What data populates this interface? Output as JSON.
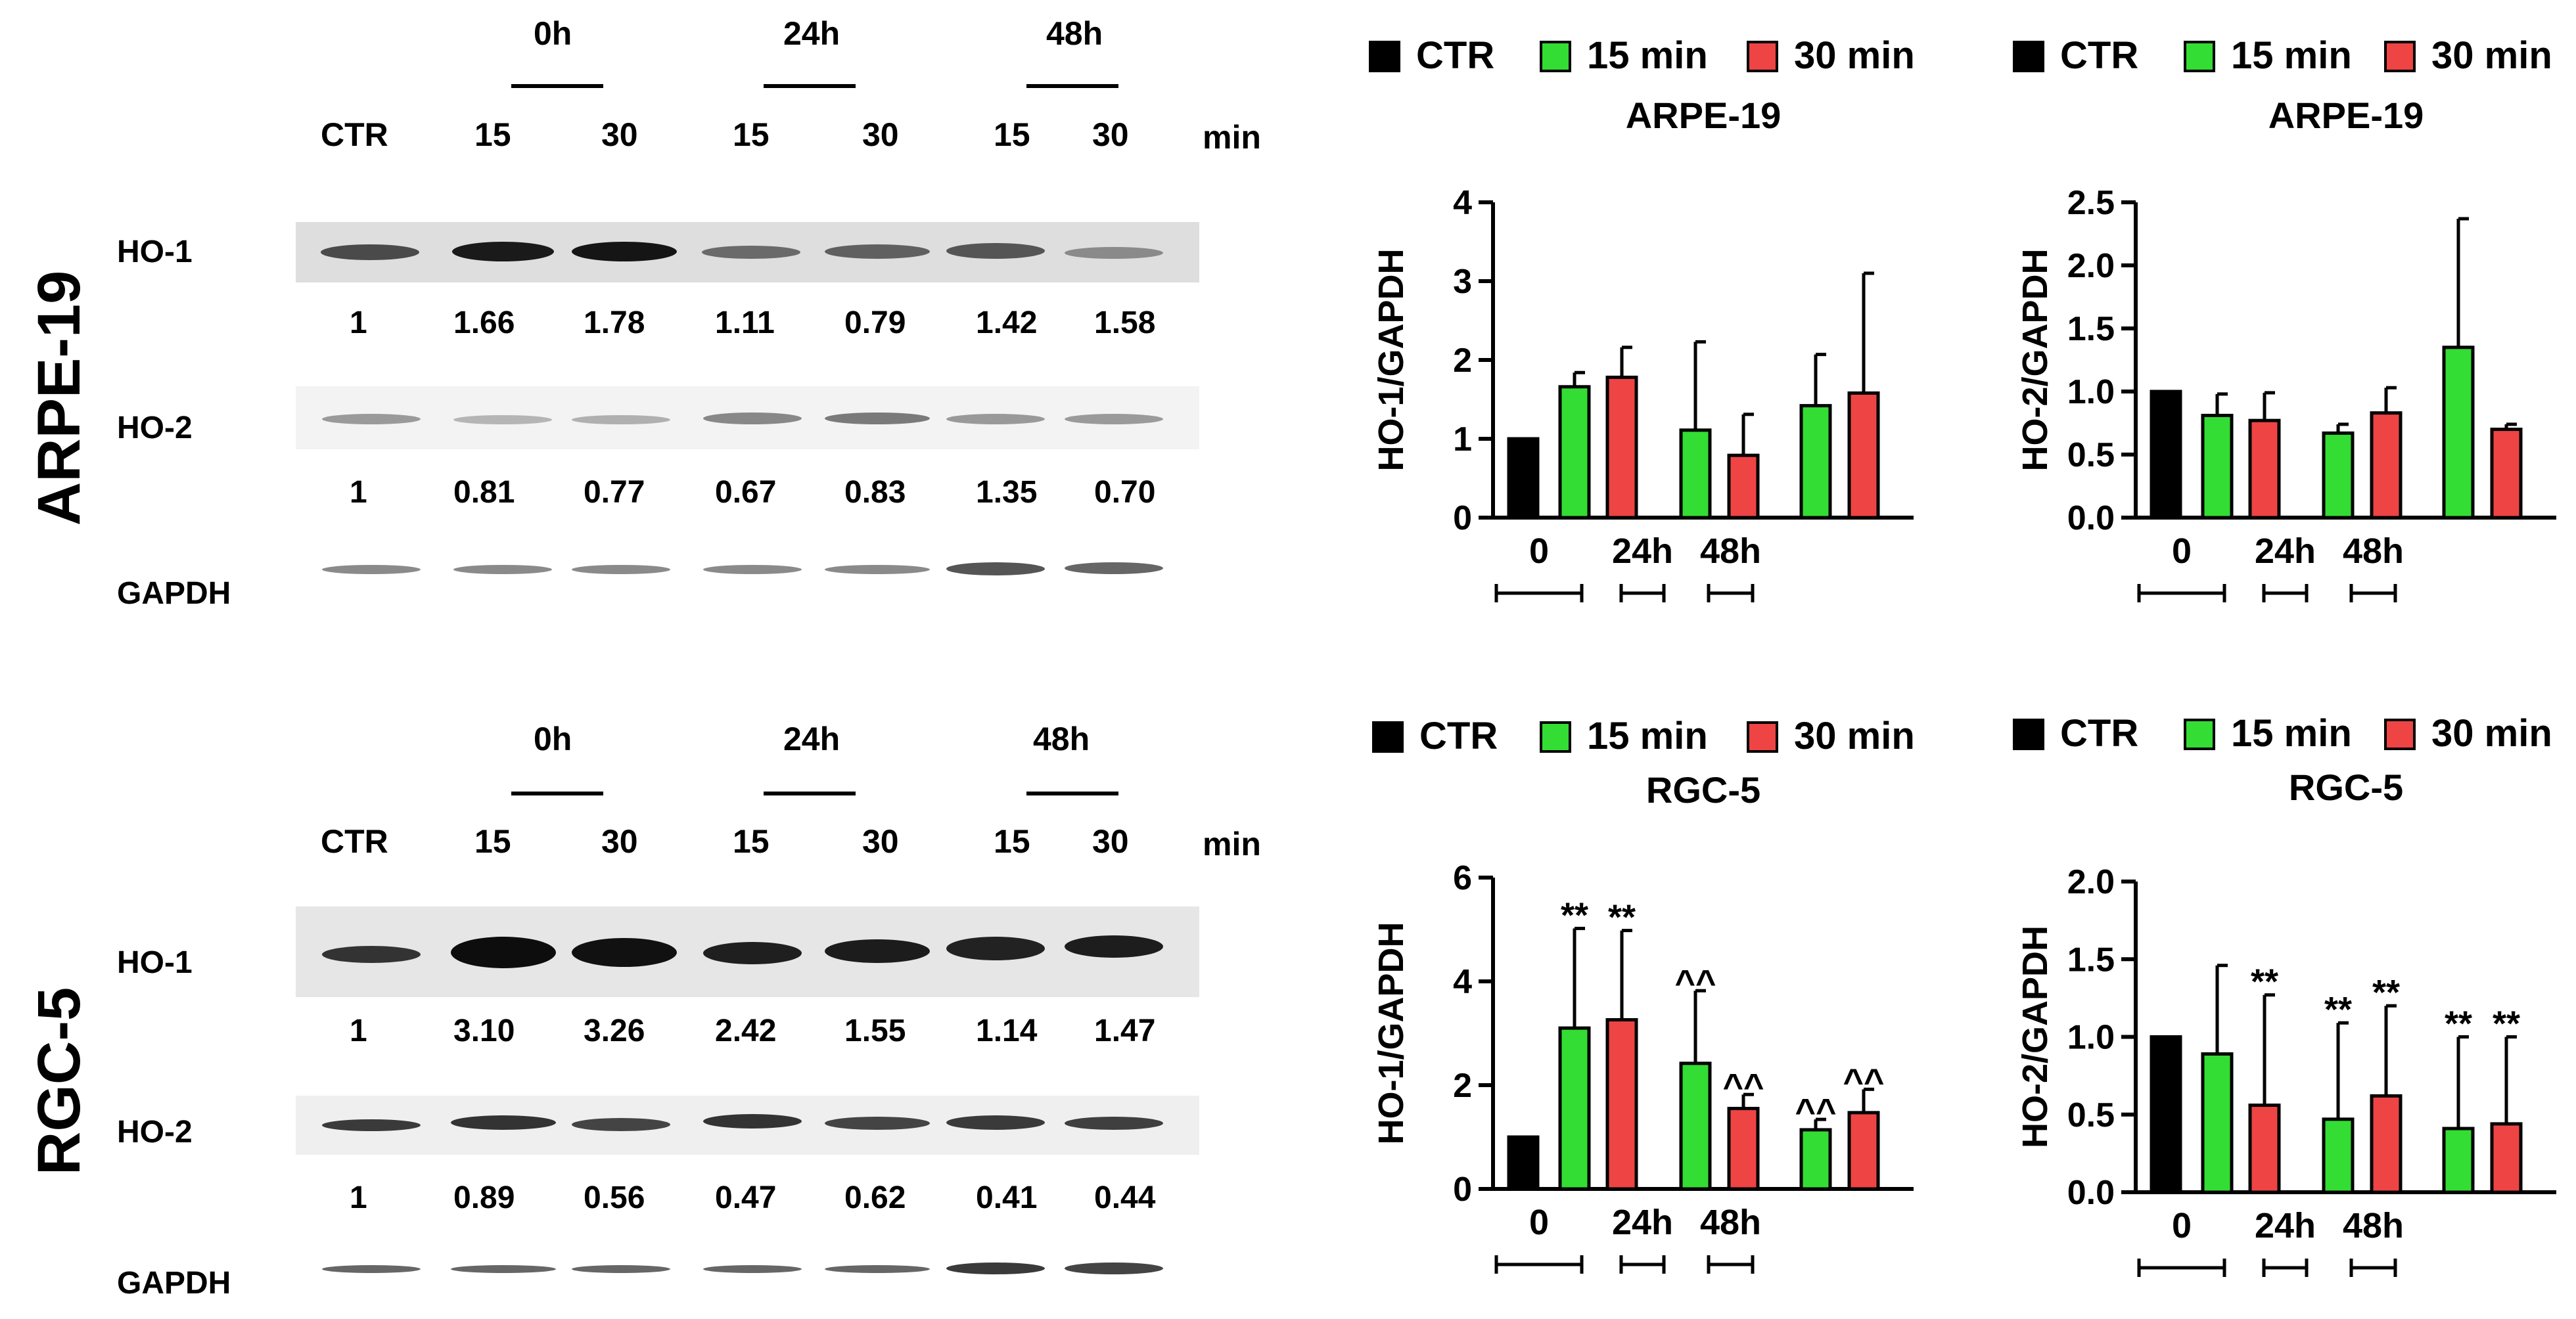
{
  "panels": [
    {
      "cell_line": "ARPE-19",
      "timepoints": [
        "0h",
        "24h",
        "48h"
      ],
      "lane_labels": [
        "CTR",
        "15",
        "30",
        "15",
        "30",
        "15",
        "30"
      ],
      "min_label": "min",
      "rows": [
        {
          "name": "HO-1",
          "values": [
            "1",
            "1.66",
            "1.78",
            "1.11",
            "0.79",
            "1.42",
            "1.58"
          ]
        },
        {
          "name": "HO-2",
          "values": [
            "1",
            "0.81",
            "0.77",
            "0.67",
            "0.83",
            "1.35",
            "0.70"
          ]
        },
        {
          "name": "GAPDH",
          "values": []
        }
      ]
    },
    {
      "cell_line": "RGC-5",
      "timepoints": [
        "0h",
        "24h",
        "48h"
      ],
      "lane_labels": [
        "CTR",
        "15",
        "30",
        "15",
        "30",
        "15",
        "30"
      ],
      "min_label": "min",
      "rows": [
        {
          "name": "HO-1",
          "values": [
            "1",
            "3.10",
            "3.26",
            "2.42",
            "1.55",
            "1.14",
            "1.47"
          ]
        },
        {
          "name": "HO-2",
          "values": [
            "1",
            "0.89",
            "0.56",
            "0.47",
            "0.62",
            "0.41",
            "0.44"
          ]
        },
        {
          "name": "GAPDH",
          "values": []
        }
      ]
    }
  ],
  "colors": {
    "ctr": "#000000",
    "m15": "#33dd33",
    "m30": "#ee4444"
  },
  "chart_data": [
    {
      "type": "bar",
      "title": "ARPE-19",
      "ylabel": "HO-1/GAPDH",
      "ylim": [
        0,
        4
      ],
      "yticks": [
        "0",
        "1",
        "2",
        "3",
        "4"
      ],
      "legend": [
        "CTR",
        "15 min",
        "30 min"
      ],
      "groups": [
        "0",
        "24h",
        "48h"
      ],
      "bars": [
        {
          "series": "CTR",
          "value": 1.0,
          "err": 0
        },
        {
          "series": "15 min",
          "value": 1.66,
          "err": 0.18
        },
        {
          "series": "30 min",
          "value": 1.78,
          "err": 0.38
        },
        {
          "series": "15 min",
          "value": 1.11,
          "err": 1.12
        },
        {
          "series": "30 min",
          "value": 0.79,
          "err": 0.52
        },
        {
          "series": "15 min",
          "value": 1.42,
          "err": 0.65
        },
        {
          "series": "30 min",
          "value": 1.58,
          "err": 1.52
        }
      ],
      "annotations": [
        "",
        "",
        "",
        "",
        "",
        "",
        ""
      ]
    },
    {
      "type": "bar",
      "title": "ARPE-19",
      "ylabel": "HO-2/GAPDH",
      "ylim": [
        0,
        2.5
      ],
      "yticks": [
        "0.0",
        "0.5",
        "1.0",
        "1.5",
        "2.0",
        "2.5"
      ],
      "legend": [
        "CTR",
        "15 min",
        "30 min"
      ],
      "groups": [
        "0",
        "24h",
        "48h"
      ],
      "bars": [
        {
          "series": "CTR",
          "value": 1.0,
          "err": 0
        },
        {
          "series": "15 min",
          "value": 0.81,
          "err": 0.17
        },
        {
          "series": "30 min",
          "value": 0.77,
          "err": 0.22
        },
        {
          "series": "15 min",
          "value": 0.67,
          "err": 0.07
        },
        {
          "series": "30 min",
          "value": 0.83,
          "err": 0.2
        },
        {
          "series": "15 min",
          "value": 1.35,
          "err": 1.02
        },
        {
          "series": "30 min",
          "value": 0.7,
          "err": 0.04
        }
      ],
      "annotations": [
        "",
        "",
        "",
        "",
        "",
        "",
        ""
      ]
    },
    {
      "type": "bar",
      "title": "RGC-5",
      "ylabel": "HO-1/GAPDH",
      "ylim": [
        0,
        6
      ],
      "yticks": [
        "0",
        "2",
        "4",
        "6"
      ],
      "legend": [
        "CTR",
        "15 min",
        "30 min"
      ],
      "groups": [
        "0",
        "24h",
        "48h"
      ],
      "bars": [
        {
          "series": "CTR",
          "value": 1.0,
          "err": 0
        },
        {
          "series": "15 min",
          "value": 3.1,
          "err": 1.92
        },
        {
          "series": "30 min",
          "value": 3.26,
          "err": 1.72
        },
        {
          "series": "15 min",
          "value": 2.42,
          "err": 1.4
        },
        {
          "series": "30 min",
          "value": 1.55,
          "err": 0.27
        },
        {
          "series": "15 min",
          "value": 1.14,
          "err": 0.2
        },
        {
          "series": "30 min",
          "value": 1.47,
          "err": 0.45
        }
      ],
      "annotations": [
        "",
        "**",
        "**",
        "^^",
        "^^",
        "^^",
        "^^"
      ]
    },
    {
      "type": "bar",
      "title": "RGC-5",
      "ylabel": "HO-2/GAPDH",
      "ylim": [
        0,
        2.0
      ],
      "yticks": [
        "0.0",
        "0.5",
        "1.0",
        "1.5",
        "2.0"
      ],
      "legend": [
        "CTR",
        "15 min",
        "30 min"
      ],
      "groups": [
        "0",
        "24h",
        "48h"
      ],
      "bars": [
        {
          "series": "CTR",
          "value": 1.0,
          "err": 0
        },
        {
          "series": "15 min",
          "value": 0.89,
          "err": 0.57
        },
        {
          "series": "30 min",
          "value": 0.56,
          "err": 0.71
        },
        {
          "series": "15 min",
          "value": 0.47,
          "err": 0.62
        },
        {
          "series": "30 min",
          "value": 0.62,
          "err": 0.58
        },
        {
          "series": "15 min",
          "value": 0.41,
          "err": 0.59
        },
        {
          "series": "30 min",
          "value": 0.44,
          "err": 0.56
        }
      ],
      "annotations": [
        "",
        "",
        "**",
        "**",
        "**",
        "**",
        "**"
      ]
    }
  ]
}
